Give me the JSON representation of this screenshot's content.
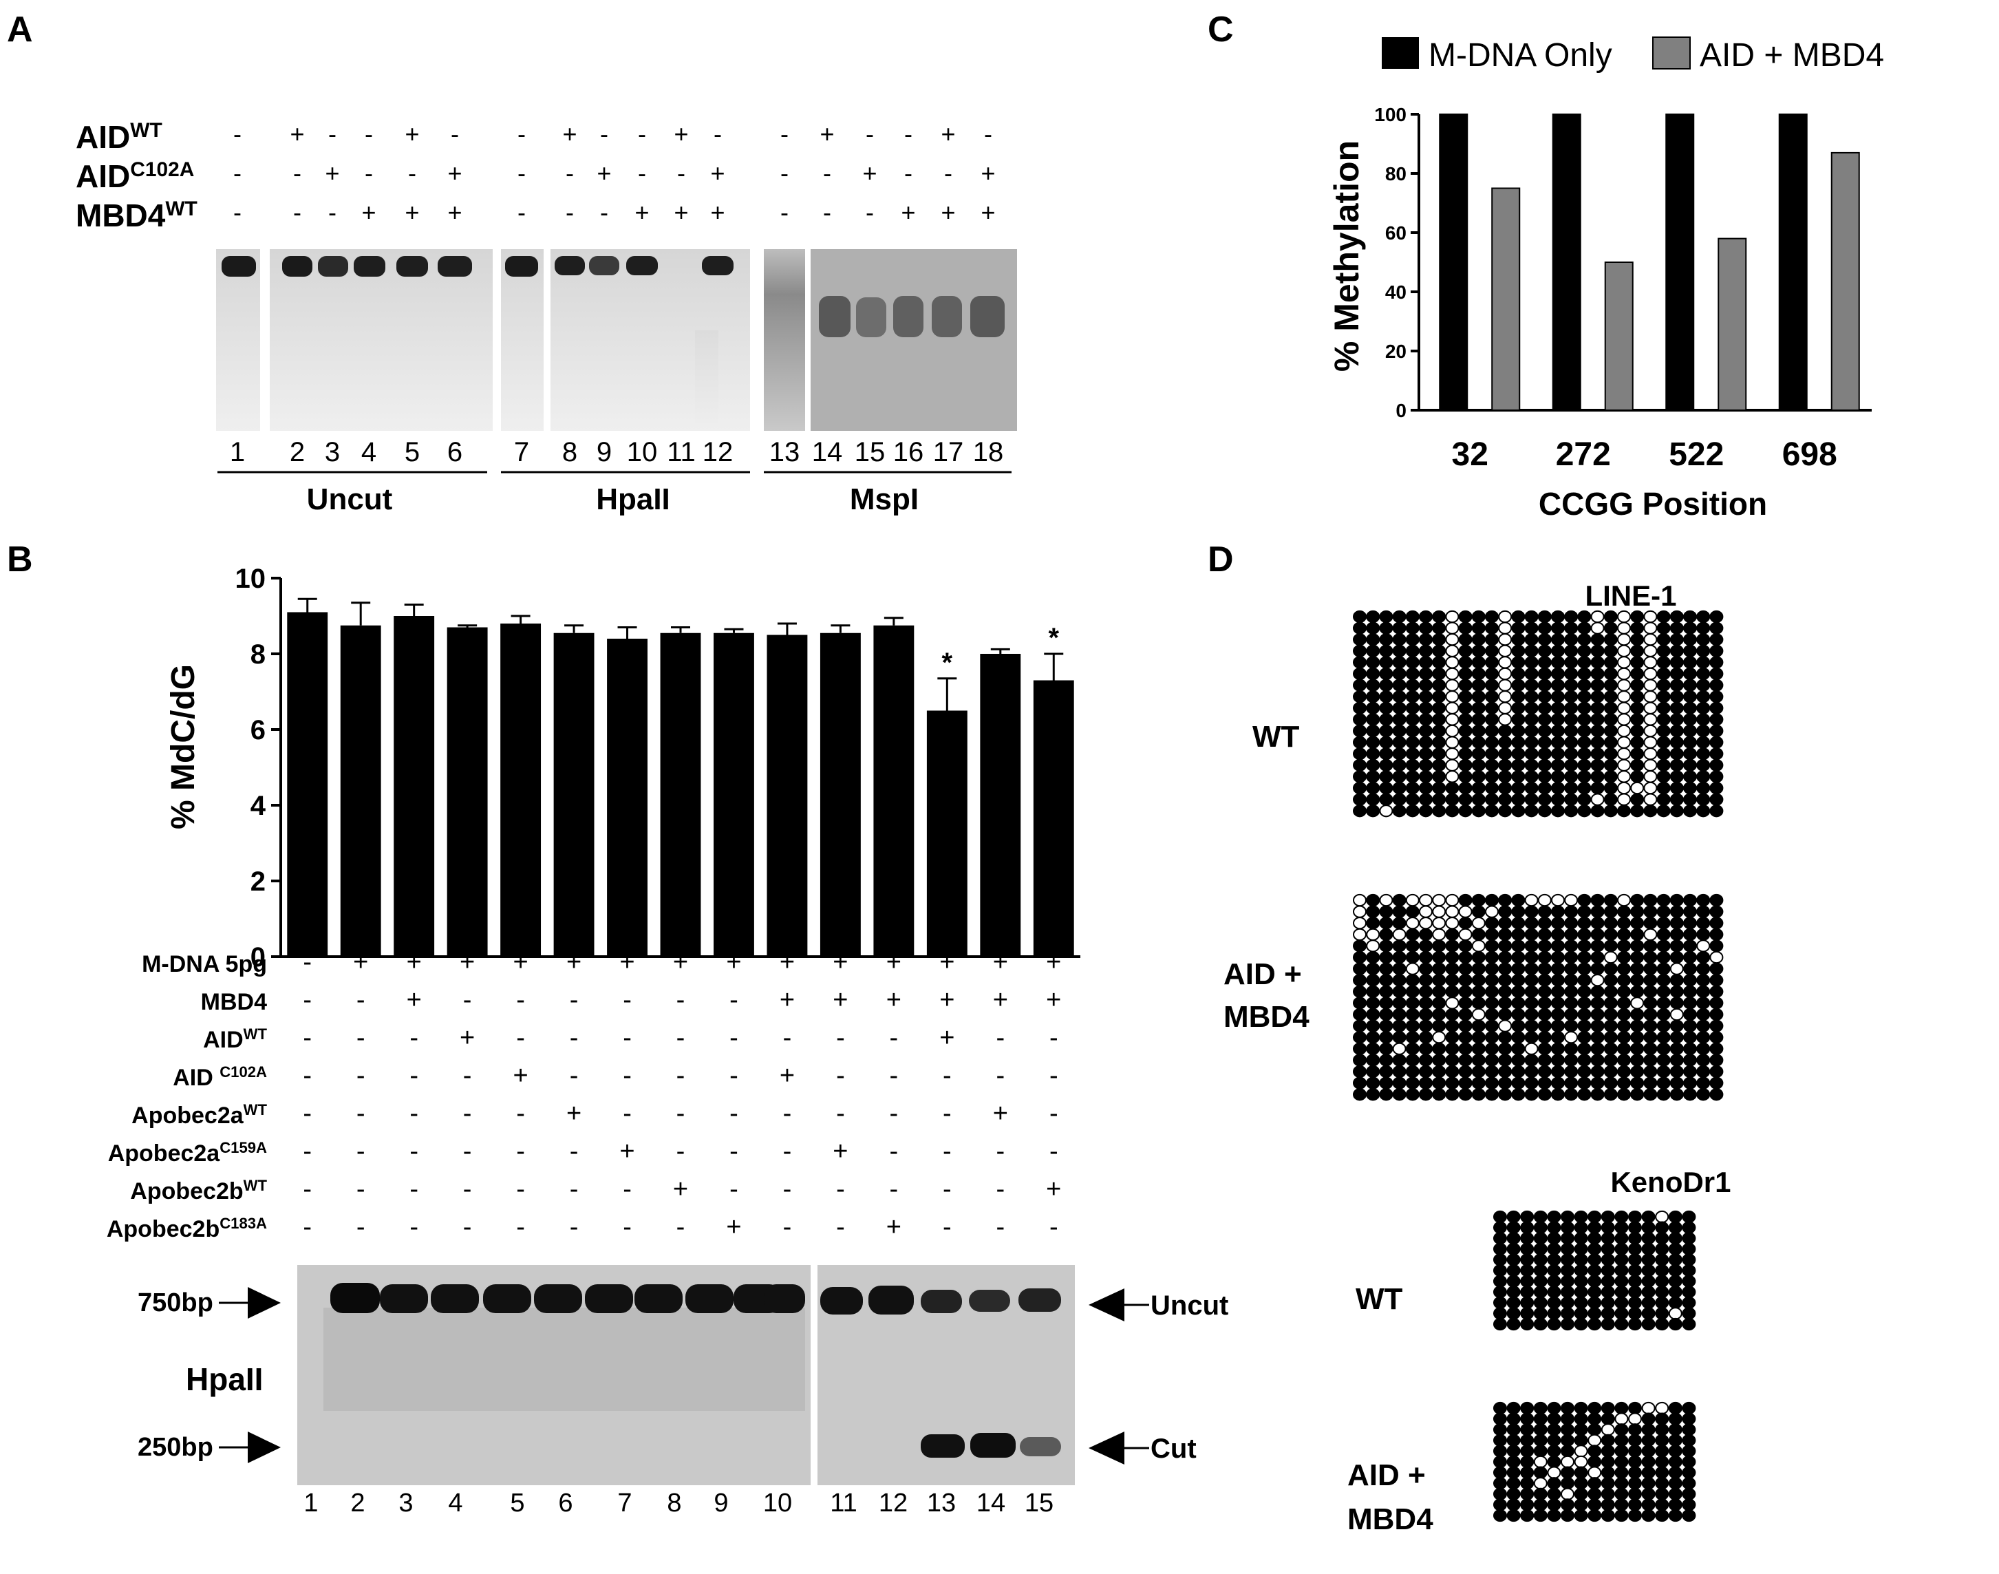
{
  "panel_letters": [
    "A",
    "B",
    "C",
    "D"
  ],
  "panelA": {
    "row_labels": [
      {
        "main": "AID",
        "sup": "WT"
      },
      {
        "main": "AID",
        "sup": "C102A"
      },
      {
        "main": "MBD4",
        "sup": "WT"
      }
    ],
    "lanes": [
      "1",
      "2",
      "3",
      "4",
      "5",
      "6",
      "7",
      "8",
      "9",
      "10",
      "11",
      "12",
      "13",
      "14",
      "15",
      "16",
      "17",
      "18"
    ],
    "signs": [
      [
        "-",
        "+",
        "-",
        "-",
        "+",
        "-",
        "-",
        "+",
        "-",
        "-",
        "+",
        "-",
        "-",
        "+",
        "-",
        "-",
        "+",
        "-"
      ],
      [
        "-",
        "-",
        "+",
        "-",
        "-",
        "+",
        "-",
        "-",
        "+",
        "-",
        "-",
        "+",
        "-",
        "-",
        "+",
        "-",
        "-",
        "+"
      ],
      [
        "-",
        "-",
        "-",
        "+",
        "+",
        "+",
        "-",
        "-",
        "-",
        "+",
        "+",
        "+",
        "-",
        "-",
        "-",
        "+",
        "+",
        "+"
      ]
    ],
    "groups": [
      "Uncut",
      "HpaII",
      "MspI"
    ]
  },
  "panelB": {
    "chart_data": {
      "type": "bar",
      "categories": [
        "1",
        "2",
        "3",
        "4",
        "5",
        "6",
        "7",
        "8",
        "9",
        "10",
        "11",
        "12",
        "13",
        "14",
        "15"
      ],
      "values": [
        9.1,
        8.75,
        9.0,
        8.7,
        8.8,
        8.55,
        8.4,
        8.55,
        8.55,
        8.5,
        8.55,
        8.75,
        6.5,
        8.0,
        7.3
      ],
      "errors": [
        0.35,
        0.6,
        0.3,
        0.05,
        0.2,
        0.2,
        0.3,
        0.15,
        0.1,
        0.3,
        0.2,
        0.2,
        0.85,
        0.12,
        0.7
      ],
      "significant": [
        "",
        "",
        "",
        "",
        "",
        "",
        "",
        "",
        "",
        "",
        "",
        "",
        "*",
        "",
        "*"
      ],
      "ylabel": "% MdC/dG",
      "ylim": [
        0,
        10
      ],
      "yticks": [
        "0",
        "2",
        "4",
        "6",
        "8",
        "10"
      ],
      "bar_color": "#000000"
    },
    "row_labels": [
      {
        "main": "M-DNA 5pg",
        "sup": ""
      },
      {
        "main": "MBD4",
        "sup": ""
      },
      {
        "main": "AID",
        "sup": "WT"
      },
      {
        "main": "AID ",
        "sup": "C102A"
      },
      {
        "main": "Apobec2a",
        "sup": "WT"
      },
      {
        "main": "Apobec2a",
        "sup": "C159A"
      },
      {
        "main": "Apobec2b",
        "sup": "WT"
      },
      {
        "main": "Apobec2b",
        "sup": "C183A"
      }
    ],
    "signs": [
      [
        "-",
        "+",
        "+",
        "+",
        "+",
        "+",
        "+",
        "+",
        "+",
        "+",
        "+",
        "+",
        "+",
        "+",
        "+"
      ],
      [
        "-",
        "-",
        "+",
        "-",
        "-",
        "-",
        "-",
        "-",
        "-",
        "+",
        "+",
        "+",
        "+",
        "+",
        "+"
      ],
      [
        "-",
        "-",
        "-",
        "+",
        "-",
        "-",
        "-",
        "-",
        "-",
        "-",
        "-",
        "-",
        "+",
        "-",
        "-"
      ],
      [
        "-",
        "-",
        "-",
        "-",
        "+",
        "-",
        "-",
        "-",
        "-",
        "+",
        "-",
        "-",
        "-",
        "-",
        "-"
      ],
      [
        "-",
        "-",
        "-",
        "-",
        "-",
        "+",
        "-",
        "-",
        "-",
        "-",
        "-",
        "-",
        "-",
        "+",
        "-"
      ],
      [
        "-",
        "-",
        "-",
        "-",
        "-",
        "-",
        "+",
        "-",
        "-",
        "-",
        "+",
        "-",
        "-",
        "-",
        "-"
      ],
      [
        "-",
        "-",
        "-",
        "-",
        "-",
        "-",
        "-",
        "+",
        "-",
        "-",
        "-",
        "-",
        "-",
        "-",
        "+"
      ],
      [
        "-",
        "-",
        "-",
        "-",
        "-",
        "-",
        "-",
        "-",
        "+",
        "-",
        "-",
        "+",
        "-",
        "-",
        "-"
      ]
    ],
    "blot": {
      "marker_750": "750bp",
      "marker_250": "250bp",
      "enzyme": "HpaII",
      "uncut": "Uncut",
      "cut": "Cut",
      "lanes": [
        "1",
        "2",
        "3",
        "4",
        "5",
        "6",
        "7",
        "8",
        "9",
        "10",
        "11",
        "12",
        "13",
        "14",
        "15"
      ]
    }
  },
  "panelC": {
    "chart_data": {
      "type": "bar",
      "categories": [
        "32",
        "272",
        "522",
        "698"
      ],
      "series": [
        {
          "name": "M-DNA Only",
          "values": [
            100,
            100,
            100,
            100
          ],
          "color": "#000000"
        },
        {
          "name": "AID + MBD4",
          "values": [
            75,
            50,
            58,
            87
          ],
          "color": "#808080"
        }
      ],
      "ylabel": "% Methylation",
      "xlabel": "CCGG Position",
      "ylim": [
        0,
        100
      ],
      "yticks": [
        "0",
        "20",
        "40",
        "60",
        "80",
        "100"
      ],
      "legend": "top"
    }
  },
  "panelD": {
    "line1": {
      "title": "LINE-1",
      "wt_label": "WT",
      "aid_label": [
        "AID +",
        "MBD4"
      ]
    },
    "kenodr1": {
      "title": "KenoDr1",
      "wt_label": "WT",
      "aid_label": [
        "AID +",
        "MBD4"
      ]
    }
  }
}
